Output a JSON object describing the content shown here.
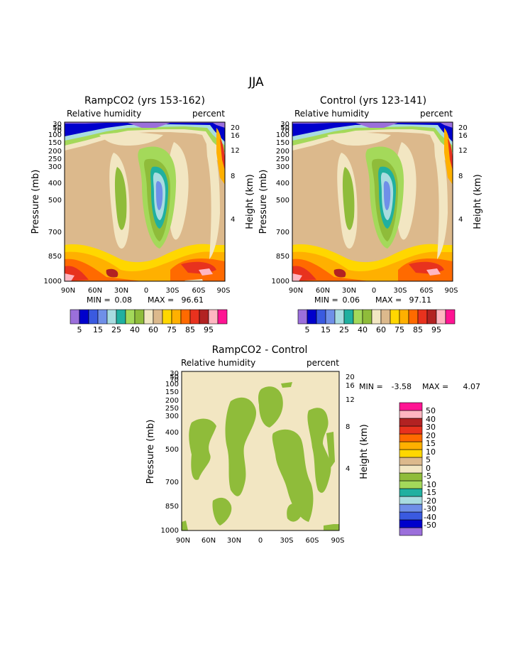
{
  "page_title": "JJA",
  "colors": {
    "rh_levels": [
      "#9b6fdb",
      "#0000cc",
      "#3a5ae0",
      "#6f8fe8",
      "#a8dce0",
      "#20b0a0",
      "#a4d95a",
      "#8fbc3a",
      "#f2e6c2",
      "#dcb98c",
      "#ffd700",
      "#ffb000",
      "#ff6a00",
      "#e8321e",
      "#b22222",
      "#ffb6c1",
      "#ff1493"
    ],
    "diff_levels": [
      "#9b6fdb",
      "#0000cc",
      "#3a5ae0",
      "#6f8fe8",
      "#a8dce0",
      "#20b0a0",
      "#a4d95a",
      "#8fbc3a",
      "#f2e6c2",
      "#dcb98c",
      "#ffd700",
      "#ffb000",
      "#ff6a00",
      "#e8321e",
      "#b22222",
      "#ffb6c1",
      "#ff1493"
    ]
  },
  "chart_data": [
    {
      "type": "heatmap",
      "title": "RampCO2 (yrs 153-162)",
      "left_label": "Relative humidity",
      "right_label": "percent",
      "ylabel": "Pressure (mb)",
      "ylabel_right": "Height (km)",
      "x_ticks": [
        "90N",
        "60N",
        "30N",
        "0",
        "30S",
        "60S",
        "90S"
      ],
      "y_ticks": [
        "30",
        "50",
        "70",
        "100",
        "150",
        "200",
        "250",
        "300",
        "400",
        "500",
        "700",
        "850",
        "1000"
      ],
      "y_right_ticks": [
        "20",
        "16",
        "12",
        "8",
        "4"
      ],
      "stats": {
        "min_label": "MIN =",
        "min": "0.08",
        "max_label": "MAX =",
        "max": "96.61"
      },
      "colorbar_labels": [
        "5",
        "15",
        "25",
        "40",
        "60",
        "75",
        "85",
        "95"
      ]
    },
    {
      "type": "heatmap",
      "title": "Control (yrs 123-141)",
      "left_label": "Relative humidity",
      "right_label": "percent",
      "ylabel": "Pressure (mb)",
      "ylabel_right": "Height (km)",
      "x_ticks": [
        "90N",
        "60N",
        "30N",
        "0",
        "30S",
        "60S",
        "90S"
      ],
      "y_ticks": [
        "30",
        "50",
        "70",
        "100",
        "150",
        "200",
        "250",
        "300",
        "400",
        "500",
        "700",
        "850",
        "1000"
      ],
      "y_right_ticks": [
        "20",
        "16",
        "12",
        "8",
        "4"
      ],
      "stats": {
        "min_label": "MIN =",
        "min": "0.06",
        "max_label": "MAX =",
        "max": "97.11"
      },
      "colorbar_labels": [
        "5",
        "15",
        "25",
        "40",
        "60",
        "75",
        "85",
        "95"
      ]
    },
    {
      "type": "heatmap",
      "title": "RampCO2 - Control",
      "left_label": "Relative humidity",
      "right_label": "percent",
      "ylabel": "Pressure (mb)",
      "ylabel_right": "Height (km)",
      "x_ticks": [
        "90N",
        "60N",
        "30N",
        "0",
        "30S",
        "60S",
        "90S"
      ],
      "y_ticks": [
        "30",
        "50",
        "70",
        "100",
        "150",
        "200",
        "250",
        "300",
        "400",
        "500",
        "700",
        "850",
        "1000"
      ],
      "y_right_ticks": [
        "20",
        "16",
        "12",
        "8",
        "4"
      ],
      "stats": {
        "min_label": "MIN =",
        "min": "-3.58",
        "max_label": "MAX =",
        "max": "4.07"
      },
      "colorbar_labels": [
        "50",
        "40",
        "30",
        "20",
        "15",
        "10",
        "5",
        "0",
        "-5",
        "-10",
        "-15",
        "-20",
        "-30",
        "-40",
        "-50"
      ]
    }
  ]
}
